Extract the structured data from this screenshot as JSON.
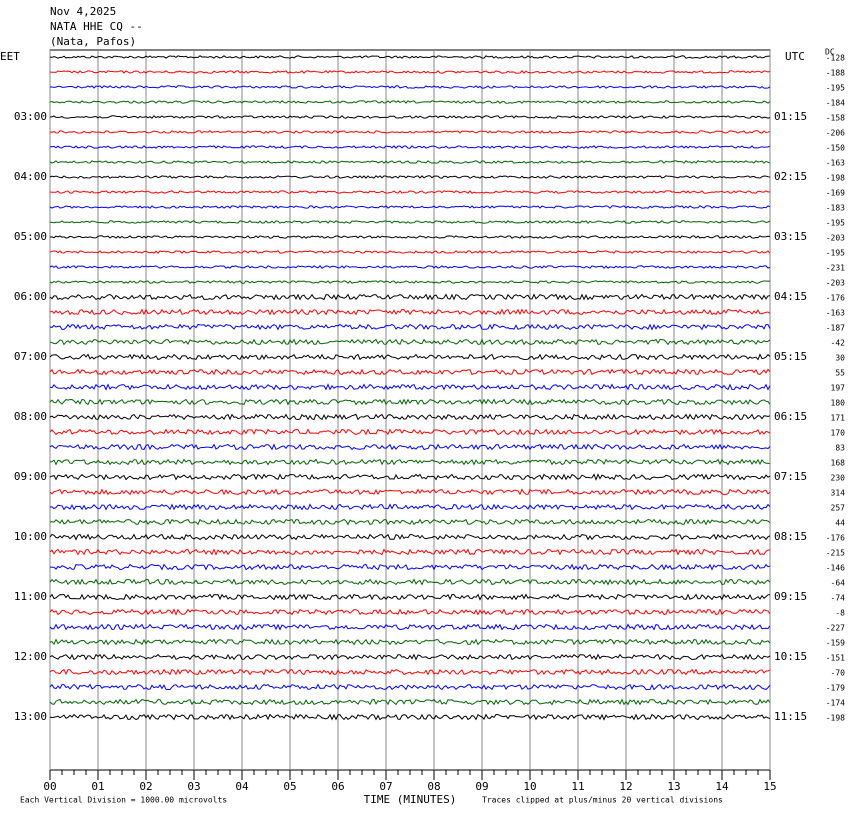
{
  "header": {
    "date": "Nov 4,2025",
    "station": "NATA HHE CQ --",
    "location": "(Nata, Pafos)"
  },
  "left_zone": "EET",
  "right_zone": "UTC",
  "dc_label": "DC",
  "trace_colors": [
    "#000000",
    "#ff0000",
    "#0000ff",
    "#006600"
  ],
  "rows": [
    {
      "eet": null,
      "dc": -128
    },
    {
      "dc": -188
    },
    {
      "dc": -195
    },
    {
      "dc": -184
    },
    {
      "eet": "03:00",
      "utc": "01:15",
      "dc": -158
    },
    {
      "dc": -206
    },
    {
      "dc": -150
    },
    {
      "dc": -163
    },
    {
      "eet": "04:00",
      "utc": "02:15",
      "dc": -198
    },
    {
      "dc": -169
    },
    {
      "dc": -183
    },
    {
      "dc": -195
    },
    {
      "eet": "05:00",
      "utc": "03:15",
      "dc": -203
    },
    {
      "dc": -195
    },
    {
      "dc": -231
    },
    {
      "dc": -203
    },
    {
      "eet": "06:00",
      "utc": "04:15",
      "dc": -176
    },
    {
      "dc": -163
    },
    {
      "dc": -187
    },
    {
      "dc": -42
    },
    {
      "eet": "07:00",
      "utc": "05:15",
      "dc": 30
    },
    {
      "dc": 55
    },
    {
      "dc": 197
    },
    {
      "dc": 180
    },
    {
      "eet": "08:00",
      "utc": "06:15",
      "dc": 171
    },
    {
      "dc": 170
    },
    {
      "dc": 83
    },
    {
      "dc": 168
    },
    {
      "eet": "09:00",
      "utc": "07:15",
      "dc": 230
    },
    {
      "dc": 314
    },
    {
      "dc": 257
    },
    {
      "dc": 44
    },
    {
      "eet": "10:00",
      "utc": "08:15",
      "dc": -176
    },
    {
      "dc": -215
    },
    {
      "dc": -146
    },
    {
      "dc": -64
    },
    {
      "eet": "11:00",
      "utc": "09:15",
      "dc": -74
    },
    {
      "dc": -8
    },
    {
      "dc": -227
    },
    {
      "dc": -159
    },
    {
      "eet": "12:00",
      "utc": "10:15",
      "dc": -151
    },
    {
      "dc": -70
    },
    {
      "dc": -179
    },
    {
      "dc": -174
    },
    {
      "eet": "13:00",
      "utc": "11:15",
      "dc": -198
    }
  ],
  "x_axis": {
    "label": "TIME (MINUTES)",
    "lim": [
      0,
      15
    ],
    "ticks": [
      {
        "value": 0,
        "label": "00"
      },
      {
        "value": 1,
        "label": "01"
      },
      {
        "value": 2,
        "label": "02"
      },
      {
        "value": 3,
        "label": "03"
      },
      {
        "value": 4,
        "label": "04"
      },
      {
        "value": 5,
        "label": "05"
      },
      {
        "value": 6,
        "label": "06"
      },
      {
        "value": 7,
        "label": "07"
      },
      {
        "value": 8,
        "label": "08"
      },
      {
        "value": 9,
        "label": "09"
      },
      {
        "value": 10,
        "label": "10"
      },
      {
        "value": 11,
        "label": "11"
      },
      {
        "value": 12,
        "label": "12"
      },
      {
        "value": 13,
        "label": "13"
      },
      {
        "value": 14,
        "label": "14"
      },
      {
        "value": 15,
        "label": "15"
      }
    ]
  },
  "footer": {
    "scale_note": "Each Vertical Division = 1000.00 microvolts",
    "clip_note": "Traces clipped at plus/minus 20 vertical divisions"
  }
}
